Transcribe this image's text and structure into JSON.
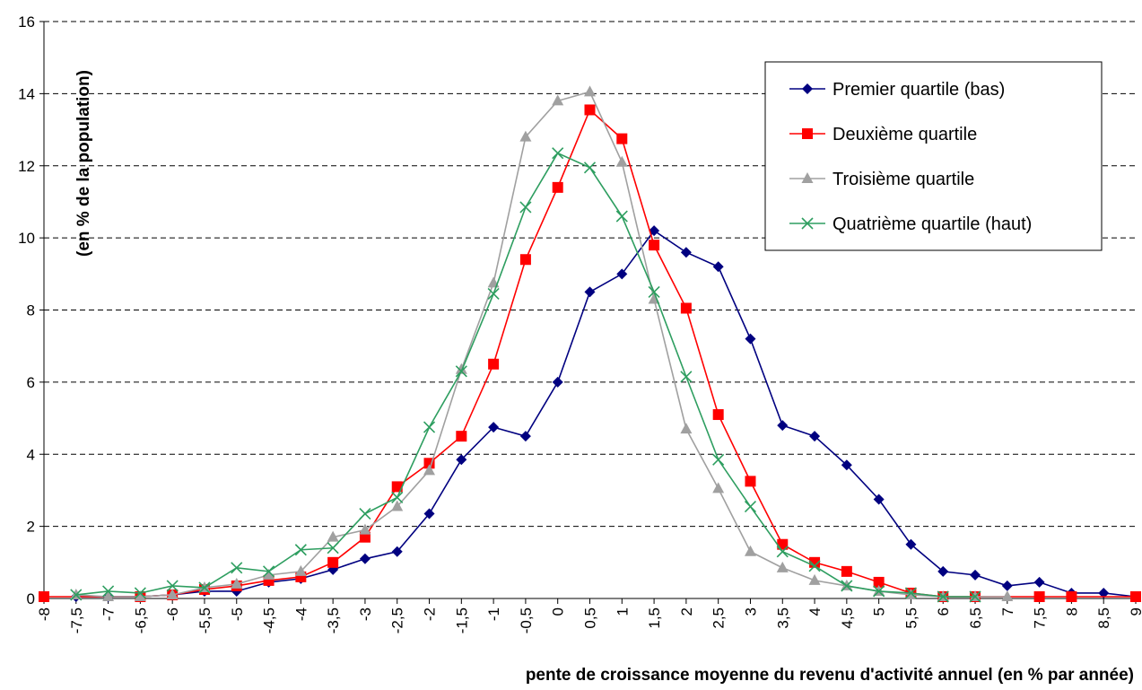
{
  "chart_data": {
    "type": "line",
    "xlabel": "pente de croissance moyenne du revenu d'activité annuel (en % par année)",
    "ylabel": "(en % de la population)",
    "ylim": [
      0,
      16
    ],
    "yticks": [
      "0",
      "2",
      "4",
      "6",
      "8",
      "10",
      "12",
      "14",
      "16"
    ],
    "grid": "horizontal dashed",
    "legend_position": "top-right",
    "categories": [
      "-8",
      "-7,5",
      "-7",
      "-6,5",
      "-6",
      "-5,5",
      "-5",
      "-4,5",
      "-4",
      "-3,5",
      "-3",
      "-2,5",
      "-2",
      "-1,5",
      "-1",
      "-0,5",
      "0",
      "0,5",
      "1",
      "1,5",
      "2",
      "2,5",
      "3",
      "3,5",
      "4",
      "4,5",
      "5",
      "5,5",
      "6",
      "6,5",
      "7",
      "7,5",
      "8",
      "8,5",
      "9"
    ],
    "series": [
      {
        "name": "Premier quartile (bas)",
        "color": "#000080",
        "marker": "diamond",
        "values": [
          null,
          0.05,
          0.05,
          0.05,
          0.1,
          0.2,
          0.2,
          0.45,
          0.55,
          0.8,
          1.1,
          1.3,
          2.35,
          3.85,
          4.75,
          4.5,
          6.0,
          8.5,
          9.0,
          10.2,
          9.6,
          9.2,
          7.2,
          4.8,
          4.5,
          3.7,
          2.75,
          1.5,
          0.75,
          0.65,
          0.35,
          0.45,
          0.15,
          0.15,
          0.05
        ]
      },
      {
        "name": "Deuxième quartile",
        "color": "#ff0000",
        "marker": "square",
        "values": [
          0.05,
          null,
          null,
          0.05,
          0.1,
          0.25,
          0.35,
          0.5,
          0.6,
          1.0,
          1.7,
          3.1,
          3.75,
          4.5,
          6.5,
          9.4,
          11.4,
          13.55,
          12.75,
          9.8,
          8.05,
          5.1,
          3.25,
          1.5,
          1.0,
          0.75,
          0.45,
          0.15,
          0.05,
          0.05,
          null,
          0.05,
          0.05,
          null,
          0.05
        ]
      },
      {
        "name": "Troisième quartile",
        "color": "#a0a0a0",
        "marker": "triangle",
        "values": [
          null,
          0.1,
          0.05,
          0.05,
          0.1,
          0.3,
          0.4,
          0.65,
          0.75,
          1.7,
          1.9,
          2.55,
          3.55,
          6.35,
          8.75,
          12.8,
          13.8,
          14.05,
          12.1,
          8.3,
          4.7,
          3.05,
          1.3,
          0.85,
          0.5,
          0.35,
          0.2,
          0.1,
          0.05,
          0.05,
          0.05,
          null,
          null,
          null,
          null
        ]
      },
      {
        "name": "Quatrième quartile (haut)",
        "color": "#2e9e60",
        "marker": "x",
        "values": [
          null,
          0.1,
          0.2,
          0.15,
          0.35,
          0.3,
          0.85,
          0.75,
          1.35,
          1.4,
          2.35,
          2.8,
          4.75,
          6.3,
          8.45,
          10.85,
          12.35,
          11.95,
          10.6,
          8.5,
          6.15,
          3.85,
          2.55,
          1.3,
          0.9,
          0.35,
          0.2,
          0.15,
          0.05,
          0.05,
          null,
          null,
          null,
          null,
          null
        ]
      }
    ]
  }
}
